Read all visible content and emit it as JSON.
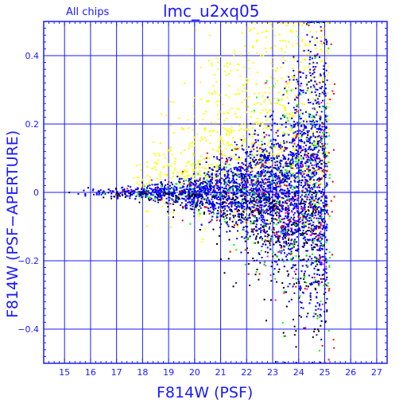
{
  "chart_data": {
    "type": "scatter",
    "title": "lmc_u2xq05",
    "subtitle": "All chips",
    "xlabel": "F814W (PSF)",
    "ylabel": "F814W (PSF−APERTURE)",
    "xlim": [
      14.2,
      27.4
    ],
    "ylim": [
      -0.5,
      0.5
    ],
    "x_ticks": [
      15,
      16,
      17,
      18,
      19,
      20,
      21,
      22,
      23,
      24,
      25,
      26,
      27
    ],
    "y_ticks": [
      -0.4,
      -0.2,
      0,
      0.2,
      0.4
    ],
    "y_tick_labels": [
      "−0.4",
      "−0.2",
      "0",
      "0.2",
      "0.4"
    ],
    "grid": true,
    "colors": {
      "axis": "#1a1aff",
      "grid": "#1a1aff",
      "yellow": "#ffff00",
      "blue": "#0000ff",
      "black": "#000000",
      "green": "#00ff00",
      "red": "#ff0000",
      "magenta": "#ff00ff"
    },
    "series": [
      {
        "color": "yellow",
        "description_count": 1200,
        "x_range": [
          17.5,
          25.3
        ],
        "peak_x": 22.5,
        "y_range": [
          -0.2,
          0.5
        ]
      },
      {
        "color": "blue",
        "description_count": 3600,
        "x_range": [
          15.0,
          25.1
        ],
        "center_y": 0.0
      },
      {
        "color": "black",
        "description_count": 450,
        "x_range": [
          15.0,
          25.1
        ],
        "y_range": [
          -0.5,
          0.5
        ]
      },
      {
        "color": "green",
        "description_count": 280,
        "x_range": [
          15.0,
          25.2
        ],
        "y_range": [
          -0.5,
          0.5
        ]
      },
      {
        "color": "red",
        "description_count": 200,
        "x_range": [
          15.0,
          25.4
        ],
        "y_range": [
          -0.5,
          0.5
        ]
      },
      {
        "color": "magenta",
        "description_count": 60,
        "x_range": [
          22.0,
          25.2
        ],
        "y_range": [
          -0.4,
          0.5
        ]
      }
    ]
  }
}
